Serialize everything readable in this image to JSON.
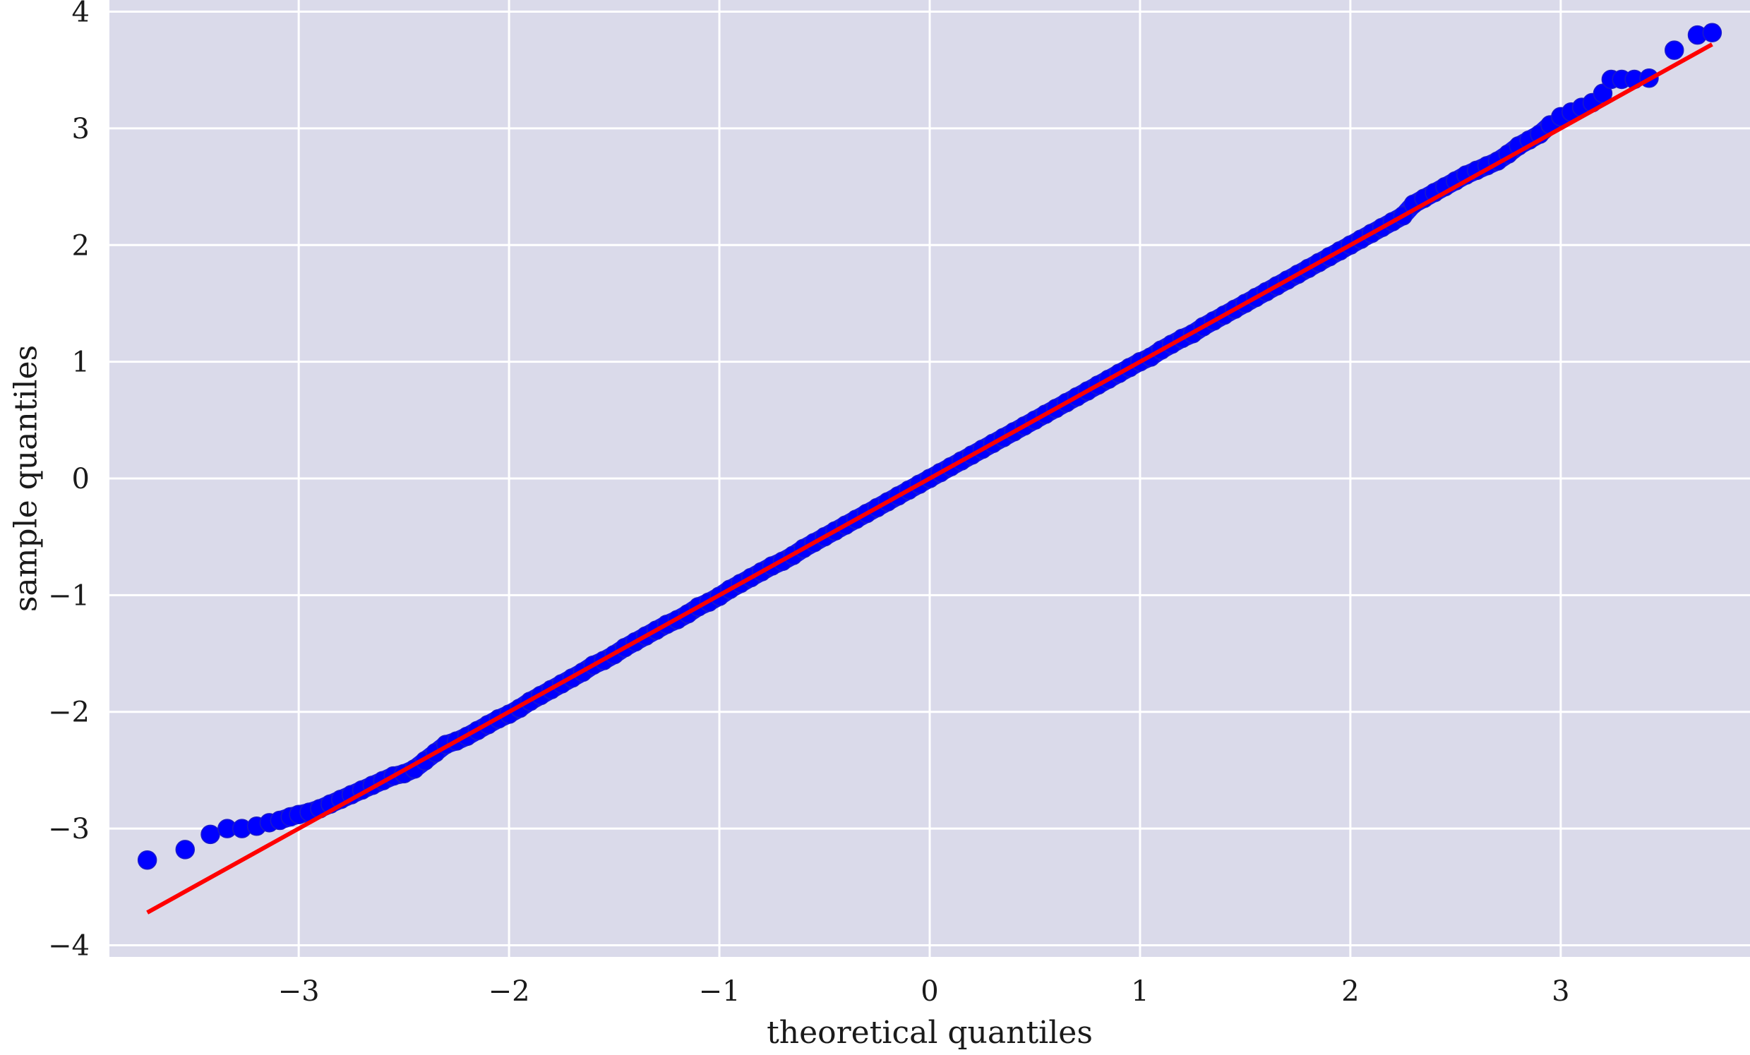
{
  "chart_data": {
    "type": "scatter",
    "title": "",
    "xlabel": "theoretical quantiles",
    "ylabel": "sample quantiles",
    "xlim": [
      -3.9,
      3.9
    ],
    "ylim": [
      -4.1,
      4.1
    ],
    "grid": true,
    "x_ticks": [
      -3,
      -2,
      -1,
      0,
      1,
      2,
      3
    ],
    "y_ticks": [
      -4,
      -3,
      -2,
      -1,
      0,
      1,
      2,
      3,
      4
    ],
    "x_tick_labels": [
      "−3",
      "−2",
      "−1",
      "0",
      "1",
      "2",
      "3"
    ],
    "y_tick_labels": [
      "−4",
      "−3",
      "−2",
      "−1",
      "0",
      "1",
      "2",
      "3",
      "4"
    ],
    "colors": {
      "background": "#dadaea",
      "grid": "#ffffff",
      "points": "#0000ff",
      "reference_line": "#ff0000"
    },
    "series": [
      {
        "kind": "points",
        "points": [
          [
            -3.72,
            -3.27
          ],
          [
            -3.54,
            -3.18
          ],
          [
            -3.42,
            -3.05
          ],
          [
            -3.34,
            -3.0
          ],
          [
            -3.27,
            -3.0
          ],
          [
            -3.2,
            -2.98
          ],
          [
            -3.14,
            -2.95
          ],
          [
            -3.09,
            -2.93
          ],
          [
            -3.04,
            -2.9
          ],
          [
            -3.0,
            -2.88
          ],
          [
            -2.95,
            -2.86
          ],
          [
            -2.9,
            -2.83
          ],
          [
            -2.85,
            -2.79
          ],
          [
            -2.8,
            -2.75
          ],
          [
            -2.75,
            -2.71
          ],
          [
            -2.7,
            -2.67
          ],
          [
            -2.65,
            -2.63
          ],
          [
            -2.6,
            -2.59
          ],
          [
            -2.55,
            -2.55
          ],
          [
            -2.5,
            -2.53
          ],
          [
            -2.45,
            -2.49
          ],
          [
            -2.4,
            -2.42
          ],
          [
            -2.35,
            -2.35
          ],
          [
            -2.3,
            -2.28
          ],
          [
            -2.25,
            -2.25
          ],
          [
            -2.2,
            -2.21
          ],
          [
            -2.15,
            -2.16
          ],
          [
            -2.1,
            -2.11
          ],
          [
            -2.05,
            -2.06
          ],
          [
            -2.0,
            -2.02
          ],
          [
            -1.95,
            -1.97
          ],
          [
            -1.9,
            -1.91
          ],
          [
            -1.85,
            -1.86
          ],
          [
            -1.8,
            -1.81
          ],
          [
            -1.75,
            -1.76
          ],
          [
            -1.7,
            -1.71
          ],
          [
            -1.65,
            -1.66
          ],
          [
            -1.6,
            -1.6
          ],
          [
            -1.55,
            -1.56
          ],
          [
            -1.5,
            -1.51
          ],
          [
            -1.45,
            -1.45
          ],
          [
            -1.4,
            -1.4
          ],
          [
            -1.35,
            -1.35
          ],
          [
            -1.3,
            -1.3
          ],
          [
            -1.25,
            -1.25
          ],
          [
            -1.2,
            -1.21
          ],
          [
            -1.15,
            -1.16
          ],
          [
            -1.1,
            -1.1
          ],
          [
            -1.05,
            -1.06
          ],
          [
            -1.0,
            -1.01
          ],
          [
            -0.95,
            -0.95
          ],
          [
            -0.9,
            -0.9
          ],
          [
            -0.85,
            -0.85
          ],
          [
            -0.8,
            -0.8
          ],
          [
            -0.75,
            -0.75
          ],
          [
            -0.7,
            -0.71
          ],
          [
            -0.65,
            -0.66
          ],
          [
            -0.6,
            -0.6
          ],
          [
            -0.55,
            -0.55
          ],
          [
            -0.5,
            -0.5
          ],
          [
            -0.45,
            -0.45
          ],
          [
            -0.4,
            -0.4
          ],
          [
            -0.35,
            -0.35
          ],
          [
            -0.3,
            -0.3
          ],
          [
            -0.25,
            -0.25
          ],
          [
            -0.2,
            -0.2
          ],
          [
            -0.15,
            -0.15
          ],
          [
            -0.1,
            -0.1
          ],
          [
            -0.05,
            -0.05
          ],
          [
            0.0,
            0.0
          ],
          [
            0.05,
            0.05
          ],
          [
            0.1,
            0.1
          ],
          [
            0.15,
            0.15
          ],
          [
            0.2,
            0.2
          ],
          [
            0.25,
            0.25
          ],
          [
            0.3,
            0.3
          ],
          [
            0.35,
            0.35
          ],
          [
            0.4,
            0.4
          ],
          [
            0.45,
            0.45
          ],
          [
            0.5,
            0.5
          ],
          [
            0.55,
            0.55
          ],
          [
            0.6,
            0.6
          ],
          [
            0.65,
            0.65
          ],
          [
            0.7,
            0.7
          ],
          [
            0.75,
            0.75
          ],
          [
            0.8,
            0.8
          ],
          [
            0.85,
            0.85
          ],
          [
            0.9,
            0.9
          ],
          [
            0.95,
            0.95
          ],
          [
            1.0,
            1.0
          ],
          [
            1.05,
            1.04
          ],
          [
            1.1,
            1.1
          ],
          [
            1.15,
            1.15
          ],
          [
            1.2,
            1.2
          ],
          [
            1.25,
            1.24
          ],
          [
            1.3,
            1.3
          ],
          [
            1.35,
            1.35
          ],
          [
            1.4,
            1.4
          ],
          [
            1.45,
            1.45
          ],
          [
            1.5,
            1.5
          ],
          [
            1.55,
            1.55
          ],
          [
            1.6,
            1.6
          ],
          [
            1.65,
            1.65
          ],
          [
            1.7,
            1.7
          ],
          [
            1.75,
            1.75
          ],
          [
            1.8,
            1.8
          ],
          [
            1.85,
            1.85
          ],
          [
            1.9,
            1.9
          ],
          [
            1.95,
            1.95
          ],
          [
            2.0,
            2.0
          ],
          [
            2.05,
            2.05
          ],
          [
            2.1,
            2.1
          ],
          [
            2.15,
            2.15
          ],
          [
            2.2,
            2.2
          ],
          [
            2.25,
            2.25
          ],
          [
            2.3,
            2.35
          ],
          [
            2.35,
            2.4
          ],
          [
            2.4,
            2.45
          ],
          [
            2.45,
            2.5
          ],
          [
            2.5,
            2.55
          ],
          [
            2.55,
            2.6
          ],
          [
            2.6,
            2.64
          ],
          [
            2.65,
            2.68
          ],
          [
            2.7,
            2.72
          ],
          [
            2.75,
            2.78
          ],
          [
            2.8,
            2.85
          ],
          [
            2.85,
            2.9
          ],
          [
            2.9,
            2.95
          ],
          [
            2.95,
            3.03
          ],
          [
            3.0,
            3.1
          ],
          [
            3.05,
            3.14
          ],
          [
            3.1,
            3.18
          ],
          [
            3.15,
            3.22
          ],
          [
            3.2,
            3.3
          ],
          [
            3.24,
            3.42
          ],
          [
            3.29,
            3.42
          ],
          [
            3.35,
            3.42
          ],
          [
            3.42,
            3.43
          ],
          [
            3.54,
            3.67
          ],
          [
            3.65,
            3.8
          ],
          [
            3.72,
            3.82
          ]
        ]
      },
      {
        "kind": "line",
        "points": [
          [
            -3.72,
            -3.72
          ],
          [
            3.72,
            3.72
          ]
        ]
      }
    ]
  }
}
